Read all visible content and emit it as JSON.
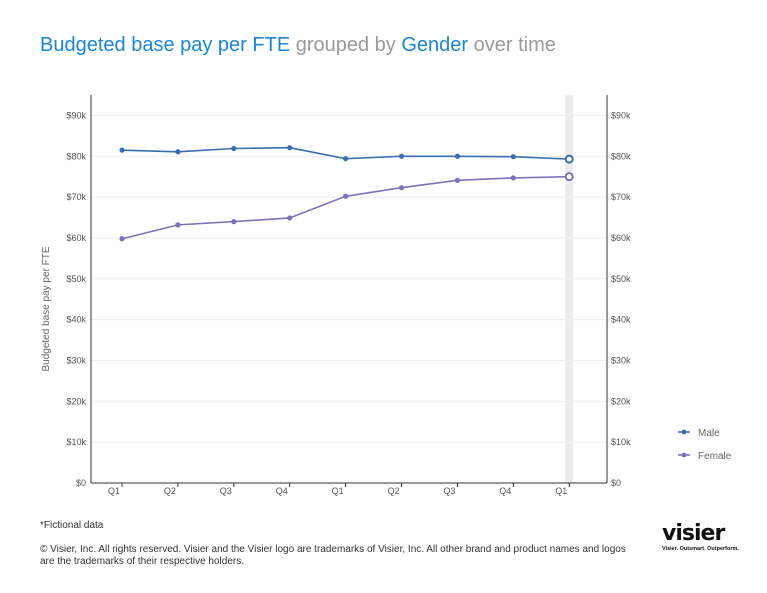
{
  "title": {
    "metric": "Budgeted base pay per FTE",
    "connector1": "grouped by",
    "dimension": "Gender",
    "connector2": "over time"
  },
  "chart_data": {
    "type": "line",
    "categories": [
      "Q1",
      "Q2",
      "Q3",
      "Q4",
      "Q1",
      "Q2",
      "Q3",
      "Q4",
      "Q1"
    ],
    "series": [
      {
        "name": "Male",
        "color": "#3a6fad",
        "values": [
          81500,
          81100,
          81900,
          82100,
          79400,
          80000,
          80000,
          79900,
          79300
        ]
      },
      {
        "name": "Female",
        "color": "#7b74b8",
        "values": [
          59800,
          63200,
          64000,
          64900,
          70200,
          72300,
          74100,
          74700,
          75000
        ]
      }
    ],
    "ylabel": "Budgeted base pay per FTE",
    "ylim": [
      0,
      95000
    ],
    "yticks": [
      "$0",
      "$10k",
      "$20k",
      "$30k",
      "$40k",
      "$50k",
      "$60k",
      "$70k",
      "$80k",
      "$90k"
    ],
    "grid": true,
    "legend_position": "right"
  },
  "footer": {
    "note": "*Fictional data",
    "copyright": "© Visier, Inc. All rights reserved. Visier and the Visier logo are trademarks of Visier, Inc. All other brand and product names and logos are the trademarks of their respective holders."
  },
  "logo": {
    "word": "visier",
    "tagline": "Visier. Outsmart. Outperform."
  }
}
